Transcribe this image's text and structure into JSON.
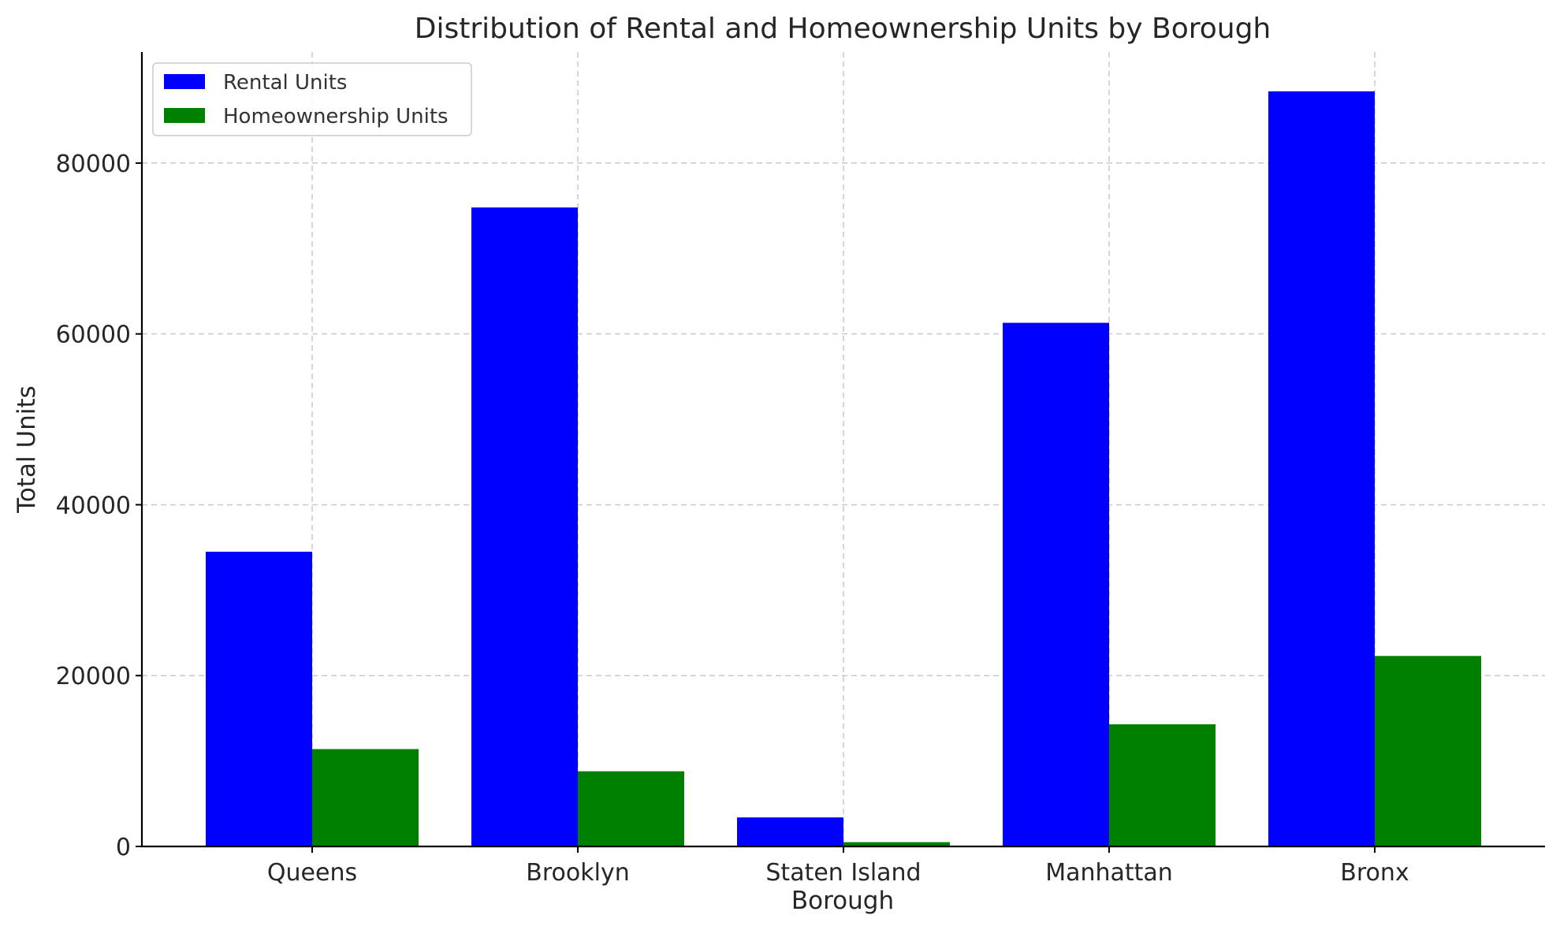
{
  "chart_data": {
    "type": "bar",
    "title": "Distribution of Rental and Homeownership Units by Borough",
    "xlabel": "Borough",
    "ylabel": "Total Units",
    "categories": [
      "Queens",
      "Brooklyn",
      "Staten Island",
      "Manhattan",
      "Bronx"
    ],
    "series": [
      {
        "name": "Rental Units",
        "color": "#0000ff",
        "values": [
          34500,
          74800,
          3400,
          61300,
          88400
        ]
      },
      {
        "name": "Homeownership Units",
        "color": "#008000",
        "values": [
          11400,
          8800,
          500,
          14300,
          22300
        ]
      }
    ],
    "ylim": [
      0,
      93000
    ],
    "yticks": [
      0,
      20000,
      40000,
      60000,
      80000
    ],
    "grid": true,
    "legend_position": "top-left"
  }
}
